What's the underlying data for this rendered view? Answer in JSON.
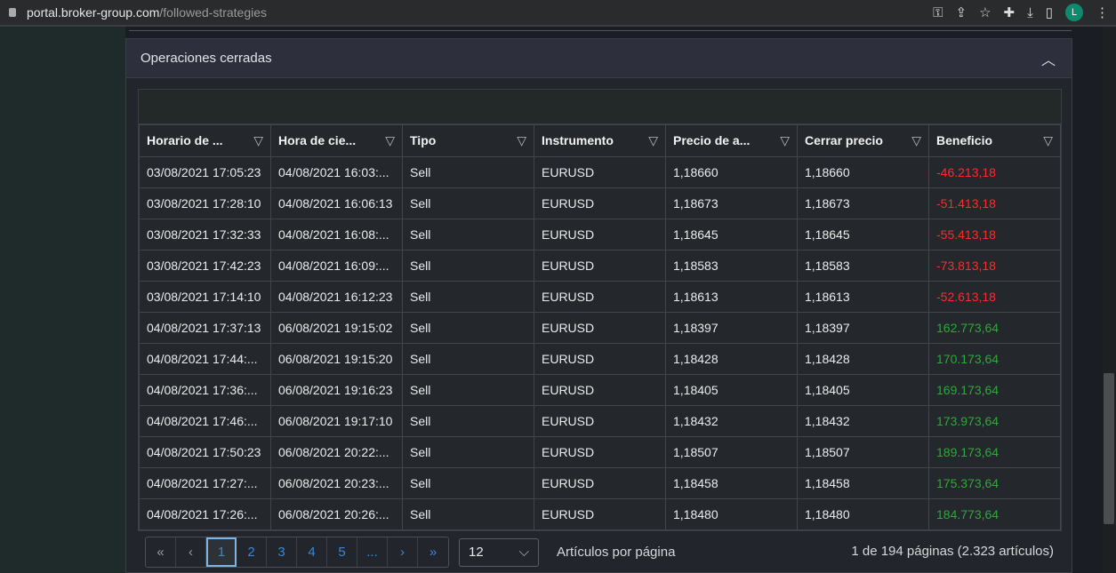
{
  "browser": {
    "url_host": "portal.broker-group.com",
    "url_path": "/followed-strategies",
    "avatar": "L",
    "icons": [
      "key-icon",
      "share-icon",
      "star-icon",
      "extensions-icon",
      "download-icon",
      "sidepanel-icon",
      "menu-icon"
    ]
  },
  "panel": {
    "title": "Operaciones cerradas"
  },
  "table": {
    "columns": [
      "Horario de ...",
      "Hora de cie...",
      "Tipo",
      "Instrumento",
      "Precio de a...",
      "Cerrar precio",
      "Beneficio"
    ],
    "rows": [
      [
        "03/08/2021 17:05:23",
        "04/08/2021 16:03:...",
        "Sell",
        "EURUSD",
        "1,18660",
        "1,18660",
        "-46.213,18"
      ],
      [
        "03/08/2021 17:28:10",
        "04/08/2021 16:06:13",
        "Sell",
        "EURUSD",
        "1,18673",
        "1,18673",
        "-51.413,18"
      ],
      [
        "03/08/2021 17:32:33",
        "04/08/2021 16:08:...",
        "Sell",
        "EURUSD",
        "1,18645",
        "1,18645",
        "-55.413,18"
      ],
      [
        "03/08/2021 17:42:23",
        "04/08/2021 16:09:...",
        "Sell",
        "EURUSD",
        "1,18583",
        "1,18583",
        "-73.813,18"
      ],
      [
        "03/08/2021 17:14:10",
        "04/08/2021 16:12:23",
        "Sell",
        "EURUSD",
        "1,18613",
        "1,18613",
        "-52.613,18"
      ],
      [
        "04/08/2021 17:37:13",
        "06/08/2021 19:15:02",
        "Sell",
        "EURUSD",
        "1,18397",
        "1,18397",
        "162.773,64"
      ],
      [
        "04/08/2021 17:44:...",
        "06/08/2021 19:15:20",
        "Sell",
        "EURUSD",
        "1,18428",
        "1,18428",
        "170.173,64"
      ],
      [
        "04/08/2021 17:36:...",
        "06/08/2021 19:16:23",
        "Sell",
        "EURUSD",
        "1,18405",
        "1,18405",
        "169.173,64"
      ],
      [
        "04/08/2021 17:46:...",
        "06/08/2021 19:17:10",
        "Sell",
        "EURUSD",
        "1,18432",
        "1,18432",
        "173.973,64"
      ],
      [
        "04/08/2021 17:50:23",
        "06/08/2021 20:22:...",
        "Sell",
        "EURUSD",
        "1,18507",
        "1,18507",
        "189.173,64"
      ],
      [
        "04/08/2021 17:27:...",
        "06/08/2021 20:23:...",
        "Sell",
        "EURUSD",
        "1,18458",
        "1,18458",
        "175.373,64"
      ],
      [
        "04/08/2021 17:26:...",
        "06/08/2021 20:26:...",
        "Sell",
        "EURUSD",
        "1,18480",
        "1,18480",
        "184.773,64"
      ]
    ]
  },
  "pager": {
    "first": "«",
    "prev": "‹",
    "pages": [
      "1",
      "2",
      "3",
      "4",
      "5",
      "..."
    ],
    "current": "1",
    "next": "›",
    "last": "»",
    "page_size": "12",
    "page_size_label": "Artículos por página",
    "info": "1 de 194 páginas (2.323 artículos)"
  },
  "colors": {
    "negative": "#ff2b2b",
    "positive": "#2ea83a",
    "link": "#3b86d6"
  }
}
